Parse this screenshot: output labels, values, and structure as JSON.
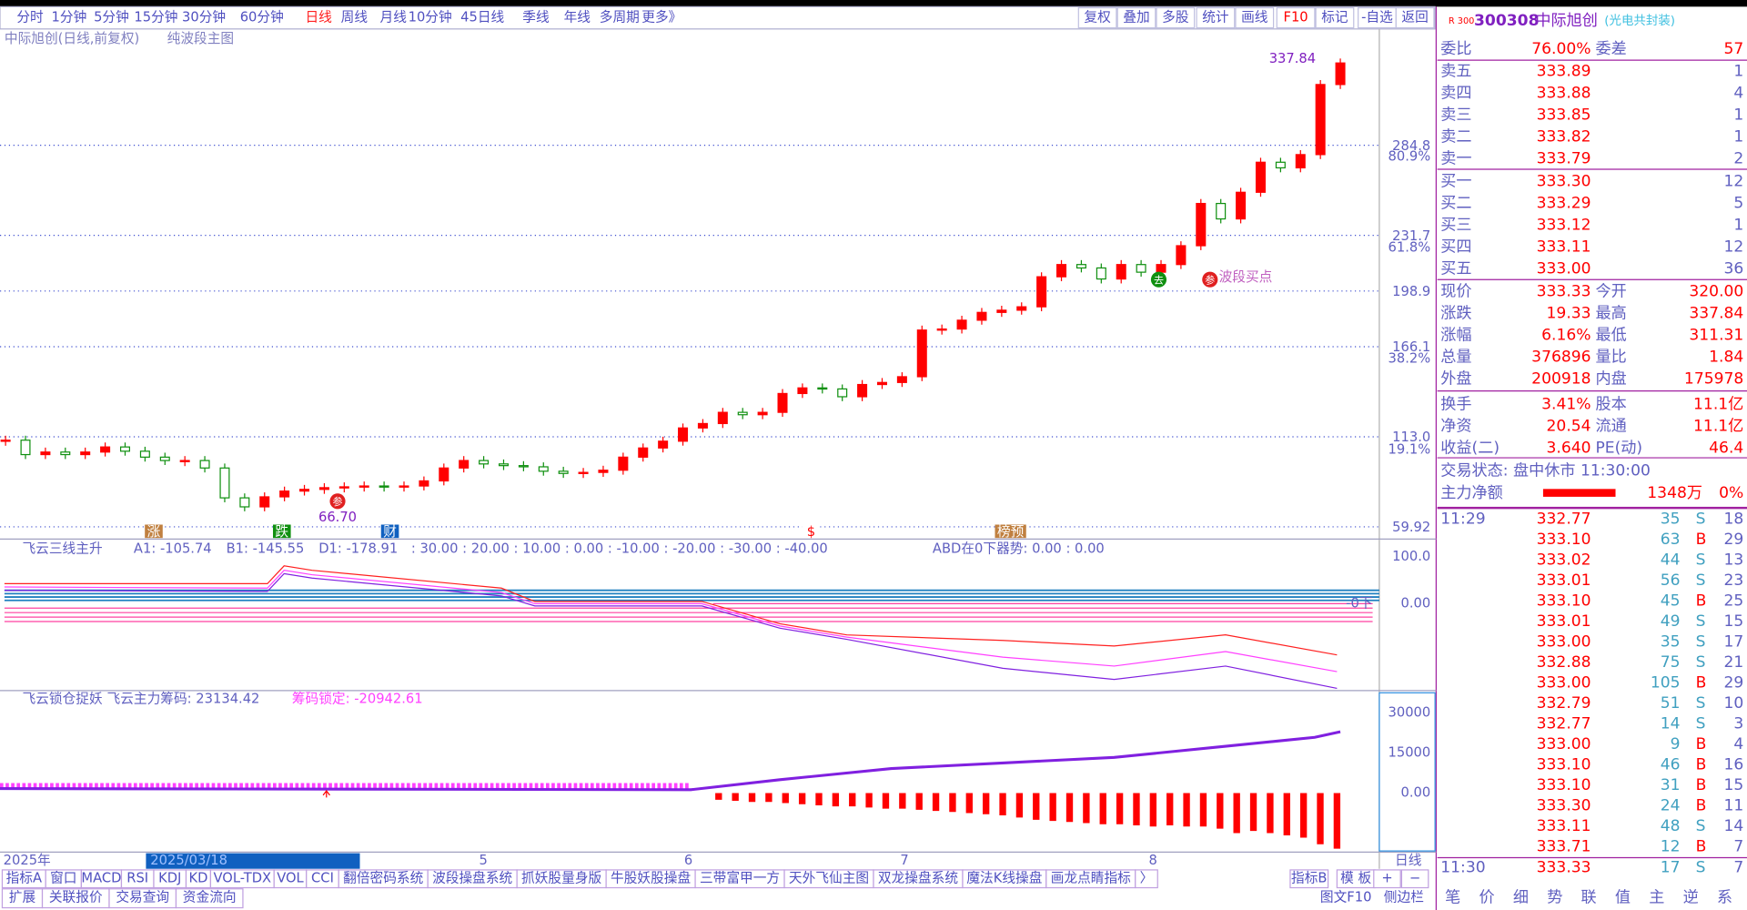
{
  "toolbar": {
    "periods": [
      "分时",
      "1分钟",
      "5分钟",
      "15分钟",
      "30分钟",
      "60分钟",
      "日线",
      "周线",
      "月线",
      "10分钟",
      "45日线",
      "季线",
      "年线",
      "多周期",
      "更多》"
    ],
    "active": 6,
    "tools": [
      "复权",
      "叠加",
      "多股",
      "统计",
      "画线",
      "F10",
      "标记",
      "-自选",
      "返回"
    ]
  },
  "main": {
    "title": "中际旭创(日线,前复权)",
    "overlay": "纯波段主图",
    "ylim": [
      59.92,
      343.5
    ],
    "price_ticks": [
      {
        "value": 284.8,
        "label": "284.8"
      },
      {
        "value": 231.7,
        "label": "231.7"
      },
      {
        "value": 198.9,
        "label": "198.9"
      },
      {
        "value": 166.1,
        "label": "166.1"
      },
      {
        "value": 113.0,
        "label": "113.0"
      },
      {
        "value": 59.92,
        "label": "59.92"
      }
    ],
    "fib_ticks": [
      {
        "value": 278,
        "label": "80.9%"
      },
      {
        "value": 224.3,
        "label": "61.8%"
      },
      {
        "value": 158.8,
        "label": "38.2%"
      },
      {
        "value": 105.1,
        "label": "19.1%"
      }
    ],
    "candles": [
      111,
      102.5,
      104,
      102.5,
      104,
      107,
      104.5,
      101,
      99,
      99,
      94.6,
      77,
      71.7,
      77.6,
      81,
      82,
      83,
      83.5,
      84,
      83.5,
      84,
      87,
      94.6,
      99,
      97,
      96,
      95.3,
      92.7,
      91.4,
      92,
      93.3,
      101,
      106.4,
      110.4,
      118.2,
      120.8,
      127.4,
      126,
      127.4,
      138.5,
      141.8,
      141.2,
      136.6,
      143.8,
      145,
      148.4,
      175.9,
      176.5,
      181.7,
      186.3,
      187.6,
      189.6,
      207.3,
      214.5,
      212.5,
      206,
      214.5,
      210,
      214.5,
      225.6,
      250.5,
      241.4,
      257.1,
      274.8,
      271.5,
      279.3,
      320.6,
      333.3
    ],
    "high_label": "337.84",
    "low_label": "66.70",
    "buy_point": "波段买点",
    "events": [
      "涨",
      "跌",
      "财",
      "$",
      "榜预"
    ],
    "signals": [
      "参",
      "去",
      "参"
    ]
  },
  "panel2": {
    "name": "飞云三线主升",
    "items": [
      "A1: -105.74",
      "B1: -145.55",
      "D1: -178.91",
      ": 30.00 : 20.00 : 10.00 : 0.00 : -10.00 : -20.00 : -30.00 : -40.00",
      "ABD在0下器势: 0.00 : 0.00"
    ],
    "axis": [
      "100.0",
      "0.00"
    ],
    "marker": "-0下"
  },
  "panel3": {
    "name": "飞云锁仓捉妖",
    "items": [
      "飞云主力筹码: 23134.42",
      "筹码锁定: -20942.61"
    ],
    "axis": [
      "30000",
      "15000",
      "0.00"
    ]
  },
  "dates": [
    "2025年",
    "2025/03/18",
    "5",
    "6",
    "7",
    "8",
    "日线"
  ],
  "tabs": [
    "指标A",
    "窗口",
    "MACD",
    "RSI",
    "KDJ",
    "KD",
    "VOL-TDX",
    "VOL",
    "CCI",
    "翻倍密码系统",
    "波段操盘系统",
    "抓妖股量身版",
    "牛股妖股操盘",
    "三带富甲一方",
    "天外飞仙主图",
    "双龙操盘系统",
    "魔法K线操盘",
    "画龙点睛指标",
    "〉"
  ],
  "tabs_right": [
    "指标B",
    "模 板",
    "+",
    "−"
  ],
  "footer": [
    "扩展",
    "关联报价",
    "交易查询",
    "资金流向"
  ],
  "footer_right": [
    "图文F10",
    "侧边栏"
  ],
  "quote": {
    "badge": "R 300",
    "code": "300308",
    "name": "中际旭创",
    "concept": "(光电共封装)",
    "ratio": [
      "委比",
      "76.00%",
      "委差",
      "57"
    ],
    "asks": [
      [
        "卖五",
        "333.89",
        "1"
      ],
      [
        "卖四",
        "333.88",
        "4"
      ],
      [
        "卖三",
        "333.85",
        "1"
      ],
      [
        "卖二",
        "333.82",
        "1"
      ],
      [
        "卖一",
        "333.79",
        "2"
      ]
    ],
    "bids": [
      [
        "买一",
        "333.30",
        "12"
      ],
      [
        "买二",
        "333.29",
        "5"
      ],
      [
        "买三",
        "333.12",
        "1"
      ],
      [
        "买四",
        "333.11",
        "12"
      ],
      [
        "买五",
        "333.00",
        "36"
      ]
    ],
    "stats": [
      [
        "现价",
        "333.33",
        "今开",
        "320.00"
      ],
      [
        "涨跌",
        "19.33",
        "最高",
        "337.84"
      ],
      [
        "涨幅",
        "6.16%",
        "最低",
        "311.31"
      ],
      [
        "总量",
        "376896",
        "量比",
        "1.84"
      ],
      [
        "外盘",
        "200918",
        "内盘",
        "175978"
      ],
      [
        "换手",
        "3.41%",
        "股本",
        "11.1亿"
      ],
      [
        "净资",
        "20.54",
        "流通",
        "11.1亿"
      ],
      [
        "收益(二)",
        "3.640",
        "PE(动)",
        "46.4"
      ]
    ],
    "status": "交易状态: 盘中休市 11:30:00",
    "flow": [
      "主力净额",
      "1348万",
      "0%"
    ],
    "tick_time": "11:29",
    "ticks": [
      [
        "332.77",
        "35",
        "S",
        "18"
      ],
      [
        "333.10",
        "63",
        "B",
        "29"
      ],
      [
        "333.02",
        "44",
        "S",
        "13"
      ],
      [
        "333.01",
        "56",
        "S",
        "23"
      ],
      [
        "333.10",
        "45",
        "B",
        "25"
      ],
      [
        "333.01",
        "49",
        "S",
        "15"
      ],
      [
        "333.00",
        "35",
        "S",
        "17"
      ],
      [
        "332.88",
        "75",
        "S",
        "21"
      ],
      [
        "333.00",
        "105",
        "B",
        "29"
      ],
      [
        "332.79",
        "51",
        "S",
        "10"
      ],
      [
        "332.77",
        "14",
        "S",
        "3"
      ],
      [
        "333.00",
        "9",
        "B",
        "4"
      ],
      [
        "333.10",
        "46",
        "B",
        "16"
      ],
      [
        "333.10",
        "31",
        "B",
        "15"
      ],
      [
        "333.30",
        "24",
        "B",
        "11"
      ],
      [
        "333.11",
        "48",
        "S",
        "14"
      ],
      [
        "333.71",
        "12",
        "B",
        "7"
      ]
    ],
    "last": [
      "11:30",
      "333.33",
      "17",
      "S",
      "7"
    ],
    "side_tabs": [
      "笔",
      "价",
      "细",
      "势",
      "联",
      "值",
      "主",
      "逆",
      "系"
    ]
  }
}
